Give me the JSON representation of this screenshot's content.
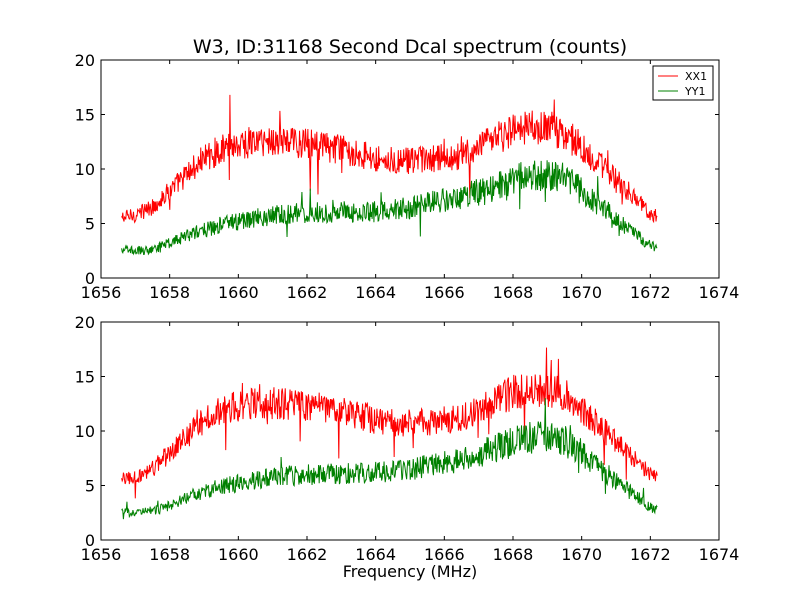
{
  "chart_data": [
    {
      "type": "line",
      "title": "W3, ID:31168 Second Dcal spectrum (counts)",
      "xlabel": "",
      "ylabel": "",
      "xlim": [
        1656,
        1674
      ],
      "ylim": [
        0,
        20
      ],
      "xticks": [
        1656,
        1658,
        1660,
        1662,
        1664,
        1666,
        1668,
        1670,
        1672,
        1674
      ],
      "yticks": [
        0,
        5,
        10,
        15,
        20
      ],
      "legend": "top-right",
      "grid": false,
      "series": [
        {
          "name": "XX1",
          "color": "#ff0000",
          "x": [
            1656.6,
            1657.0,
            1657.5,
            1658.0,
            1658.5,
            1659.0,
            1659.5,
            1660.0,
            1660.5,
            1661.0,
            1661.5,
            1662.0,
            1662.5,
            1663.0,
            1663.5,
            1664.0,
            1664.5,
            1665.0,
            1665.5,
            1666.0,
            1666.5,
            1667.0,
            1667.5,
            1668.0,
            1668.5,
            1669.0,
            1669.5,
            1670.0,
            1670.5,
            1671.0,
            1671.5,
            1672.0,
            1672.2
          ],
          "y": [
            5.5,
            5.8,
            6.5,
            8.0,
            9.5,
            11.0,
            11.8,
            12.3,
            12.5,
            12.6,
            12.5,
            12.3,
            12.0,
            11.8,
            11.5,
            11.0,
            10.8,
            10.7,
            10.8,
            11.0,
            11.2,
            11.8,
            12.8,
            13.5,
            13.8,
            13.8,
            13.3,
            12.0,
            10.5,
            9.0,
            7.5,
            6.0,
            5.7
          ]
        },
        {
          "name": "YY1",
          "color": "#008000",
          "x": [
            1656.6,
            1657.0,
            1657.5,
            1658.0,
            1658.5,
            1659.0,
            1659.5,
            1660.0,
            1660.5,
            1661.0,
            1661.5,
            1662.0,
            1662.5,
            1663.0,
            1663.5,
            1664.0,
            1664.5,
            1665.0,
            1665.5,
            1666.0,
            1666.5,
            1667.0,
            1667.5,
            1668.0,
            1668.5,
            1669.0,
            1669.5,
            1670.0,
            1670.5,
            1671.0,
            1671.5,
            1672.0,
            1672.2
          ],
          "y": [
            2.6,
            2.5,
            2.6,
            3.2,
            3.9,
            4.4,
            4.9,
            5.2,
            5.5,
            5.7,
            5.9,
            6.0,
            6.0,
            6.1,
            6.1,
            6.2,
            6.3,
            6.4,
            6.8,
            7.1,
            7.4,
            7.9,
            8.4,
            9.0,
            9.4,
            9.5,
            9.1,
            8.0,
            6.7,
            5.4,
            4.2,
            3.0,
            2.7
          ]
        }
      ]
    },
    {
      "type": "line",
      "title": "",
      "xlabel": "Frequency (MHz)",
      "ylabel": "",
      "xlim": [
        1656,
        1674
      ],
      "ylim": [
        0,
        20
      ],
      "xticks": [
        1656,
        1658,
        1660,
        1662,
        1664,
        1666,
        1668,
        1670,
        1672,
        1674
      ],
      "yticks": [
        0,
        5,
        10,
        15,
        20
      ],
      "legend": "none",
      "grid": false,
      "series": [
        {
          "color": "#ff0000",
          "x": [
            1656.6,
            1657.0,
            1657.5,
            1658.0,
            1658.5,
            1659.0,
            1659.5,
            1660.0,
            1660.5,
            1661.0,
            1661.5,
            1662.0,
            1662.5,
            1663.0,
            1663.5,
            1664.0,
            1664.5,
            1665.0,
            1665.5,
            1666.0,
            1666.5,
            1667.0,
            1667.5,
            1668.0,
            1668.5,
            1669.0,
            1669.5,
            1670.0,
            1670.5,
            1671.0,
            1671.5,
            1672.0,
            1672.2
          ],
          "y": [
            5.5,
            5.8,
            6.5,
            8.0,
            9.5,
            11.0,
            11.8,
            12.3,
            12.5,
            12.6,
            12.5,
            12.3,
            12.0,
            11.8,
            11.5,
            11.0,
            10.8,
            10.7,
            10.8,
            11.0,
            11.2,
            11.8,
            12.8,
            13.5,
            13.8,
            13.8,
            13.3,
            12.0,
            10.5,
            9.0,
            7.5,
            6.0,
            5.7
          ]
        },
        {
          "color": "#008000",
          "x": [
            1656.6,
            1657.0,
            1657.5,
            1658.0,
            1658.5,
            1659.0,
            1659.5,
            1660.0,
            1660.5,
            1661.0,
            1661.5,
            1662.0,
            1662.5,
            1663.0,
            1663.5,
            1664.0,
            1664.5,
            1665.0,
            1665.5,
            1666.0,
            1666.5,
            1667.0,
            1667.5,
            1668.0,
            1668.5,
            1669.0,
            1669.5,
            1670.0,
            1670.5,
            1671.0,
            1671.5,
            1672.0,
            1672.2
          ],
          "y": [
            2.6,
            2.5,
            2.6,
            3.2,
            3.9,
            4.4,
            4.9,
            5.2,
            5.5,
            5.7,
            5.9,
            6.0,
            6.0,
            6.1,
            6.1,
            6.2,
            6.3,
            6.4,
            6.8,
            7.1,
            7.4,
            7.9,
            8.4,
            9.0,
            9.4,
            9.5,
            9.1,
            8.0,
            6.7,
            5.4,
            4.2,
            3.0,
            2.7
          ]
        }
      ]
    }
  ]
}
